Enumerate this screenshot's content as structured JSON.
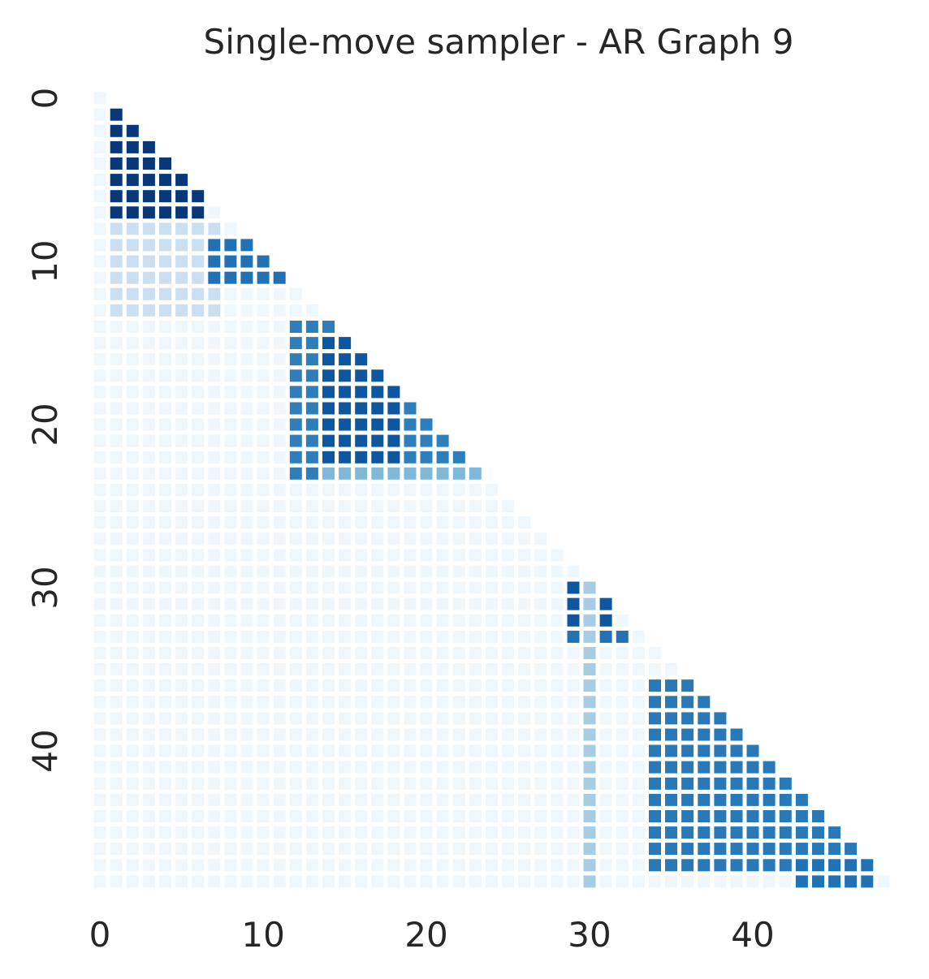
{
  "chart_data": {
    "type": "heatmap",
    "title": "Single-move sampler - AR Graph 9",
    "xlabel": "",
    "ylabel": "",
    "n": 49,
    "mask": "upper-triangle",
    "colormap": "Blues",
    "vmin": 0,
    "vmax": 1,
    "grid": false,
    "x_ticks": [
      0,
      10,
      20,
      30,
      40
    ],
    "y_ticks": [
      0,
      10,
      20,
      30,
      40
    ],
    "x_tick_labels": [
      "0",
      "10",
      "20",
      "30",
      "40"
    ],
    "y_tick_labels": [
      "0",
      "10",
      "20",
      "30",
      "40"
    ],
    "default_value": 0.04,
    "blocks": [
      {
        "rows": [
          1,
          7
        ],
        "cols": [
          1,
          6
        ],
        "value": 0.97
      },
      {
        "rows": [
          8,
          13
        ],
        "cols": [
          1,
          7
        ],
        "value": 0.22
      },
      {
        "rows": [
          9,
          11
        ],
        "cols": [
          7,
          11
        ],
        "value": 0.75
      },
      {
        "rows": [
          14,
          23
        ],
        "cols": [
          12,
          22
        ],
        "value": 0.7
      },
      {
        "rows": [
          15,
          23
        ],
        "cols": [
          14,
          18
        ],
        "value": 0.85
      },
      {
        "rows": [
          23,
          23
        ],
        "cols": [
          14,
          23
        ],
        "value": 0.45
      },
      {
        "rows": [
          30,
          32
        ],
        "cols": [
          29,
          31
        ],
        "value": 0.85
      },
      {
        "rows": [
          33,
          33
        ],
        "cols": [
          29,
          32
        ],
        "value": 0.75
      },
      {
        "rows": [
          36,
          47
        ],
        "cols": [
          34,
          46
        ],
        "value": 0.72
      },
      {
        "rows": [
          47,
          48
        ],
        "cols": [
          43,
          47
        ],
        "value": 0.75
      },
      {
        "rows": [
          25,
          48
        ],
        "cols": [
          30,
          30
        ],
        "value": 0.35
      }
    ]
  }
}
